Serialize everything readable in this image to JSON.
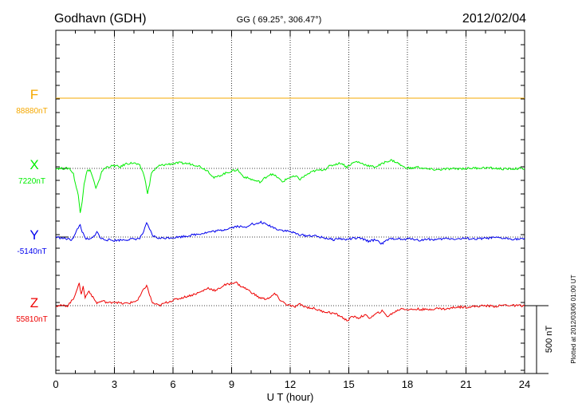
{
  "header": {
    "station": "Godhavn (GDH)",
    "coords": "GG ( 69.25°, 306.47°)",
    "date": "2012/02/04"
  },
  "footer": {
    "plotted": "Plotted at 2012/03/06 01:00 UT"
  },
  "chart_data": {
    "type": "line",
    "xlabel": "U T (hour)",
    "xlim": [
      0,
      24
    ],
    "xticks": [
      "0",
      "3",
      "6",
      "9",
      "12",
      "15",
      "18",
      "21",
      "24"
    ],
    "grid": true,
    "scale_bar": {
      "label": "500 nT",
      "value": 500
    },
    "series": [
      {
        "name": "F",
        "baseline_label": "88880nT",
        "baseline": 88880,
        "color": "#f5a800",
        "points": [
          [
            0,
            0
          ],
          [
            24,
            0
          ]
        ]
      },
      {
        "name": "X",
        "baseline_label": "7220nT",
        "baseline": 7220,
        "color": "#00ee00",
        "points": [
          [
            0,
            0
          ],
          [
            0.7,
            0
          ],
          [
            0.9,
            -40
          ],
          [
            1.0,
            -110
          ],
          [
            1.15,
            -200
          ],
          [
            1.25,
            -320
          ],
          [
            1.35,
            -240
          ],
          [
            1.45,
            -110
          ],
          [
            1.6,
            -20
          ],
          [
            1.75,
            -10
          ],
          [
            1.9,
            -70
          ],
          [
            2.05,
            -150
          ],
          [
            2.2,
            -100
          ],
          [
            2.35,
            -20
          ],
          [
            2.6,
            10
          ],
          [
            3.0,
            20
          ],
          [
            3.3,
            10
          ],
          [
            3.6,
            35
          ],
          [
            4.0,
            40
          ],
          [
            4.3,
            20
          ],
          [
            4.5,
            -40
          ],
          [
            4.6,
            -110
          ],
          [
            4.7,
            -180
          ],
          [
            4.8,
            -120
          ],
          [
            4.9,
            -30
          ],
          [
            5.3,
            20
          ],
          [
            5.7,
            30
          ],
          [
            6.3,
            40
          ],
          [
            6.8,
            35
          ],
          [
            7.3,
            20
          ],
          [
            7.8,
            -20
          ],
          [
            8.1,
            -70
          ],
          [
            8.3,
            -60
          ],
          [
            8.6,
            -40
          ],
          [
            9.0,
            -20
          ],
          [
            9.3,
            -10
          ],
          [
            9.6,
            -60
          ],
          [
            9.9,
            -75
          ],
          [
            10.3,
            -95
          ],
          [
            10.5,
            -100
          ],
          [
            10.7,
            -70
          ],
          [
            11.0,
            -40
          ],
          [
            11.3,
            -60
          ],
          [
            11.6,
            -100
          ],
          [
            11.8,
            -80
          ],
          [
            12.0,
            -65
          ],
          [
            12.3,
            -60
          ],
          [
            12.5,
            -80
          ],
          [
            12.8,
            -50
          ],
          [
            13.2,
            -20
          ],
          [
            13.6,
            -10
          ],
          [
            13.8,
            -5
          ],
          [
            14.0,
            15
          ],
          [
            14.3,
            30
          ],
          [
            14.6,
            40
          ],
          [
            14.9,
            10
          ],
          [
            15.2,
            40
          ],
          [
            15.4,
            50
          ],
          [
            15.7,
            35
          ],
          [
            16.0,
            20
          ],
          [
            16.3,
            10
          ],
          [
            16.6,
            25
          ],
          [
            16.9,
            50
          ],
          [
            17.2,
            60
          ],
          [
            17.5,
            40
          ],
          [
            17.8,
            10
          ],
          [
            18.2,
            0
          ],
          [
            18.5,
            10
          ],
          [
            19.0,
            -5
          ],
          [
            19.5,
            -10
          ],
          [
            20.0,
            -5
          ],
          [
            21.0,
            0
          ],
          [
            22.0,
            5
          ],
          [
            23.0,
            -5
          ],
          [
            24.0,
            0
          ]
        ]
      },
      {
        "name": "Y",
        "baseline_label": "-5140nT",
        "baseline": -5140,
        "color": "#0000ee",
        "points": [
          [
            0,
            0
          ],
          [
            0.8,
            -20
          ],
          [
            1.0,
            20
          ],
          [
            1.1,
            60
          ],
          [
            1.25,
            90
          ],
          [
            1.35,
            40
          ],
          [
            1.5,
            -10
          ],
          [
            1.7,
            -20
          ],
          [
            1.9,
            -5
          ],
          [
            2.1,
            40
          ],
          [
            2.3,
            -10
          ],
          [
            2.6,
            -20
          ],
          [
            3.0,
            -25
          ],
          [
            3.5,
            -20
          ],
          [
            4.0,
            -15
          ],
          [
            4.3,
            -10
          ],
          [
            4.5,
            40
          ],
          [
            4.65,
            100
          ],
          [
            4.8,
            60
          ],
          [
            4.95,
            10
          ],
          [
            5.3,
            -10
          ],
          [
            5.8,
            -5
          ],
          [
            6.3,
            0
          ],
          [
            6.8,
            10
          ],
          [
            7.2,
            20
          ],
          [
            7.6,
            30
          ],
          [
            8.0,
            40
          ],
          [
            8.5,
            50
          ],
          [
            9.0,
            70
          ],
          [
            9.3,
            80
          ],
          [
            9.7,
            70
          ],
          [
            10.0,
            100
          ],
          [
            10.2,
            90
          ],
          [
            10.5,
            110
          ],
          [
            10.8,
            90
          ],
          [
            11.0,
            80
          ],
          [
            11.3,
            60
          ],
          [
            11.6,
            50
          ],
          [
            12.0,
            40
          ],
          [
            12.4,
            20
          ],
          [
            12.8,
            10
          ],
          [
            13.2,
            10
          ],
          [
            13.5,
            0
          ],
          [
            13.9,
            -10
          ],
          [
            14.2,
            -20
          ],
          [
            14.5,
            -10
          ],
          [
            14.8,
            -20
          ],
          [
            15.2,
            -10
          ],
          [
            15.6,
            -10
          ],
          [
            16.0,
            -30
          ],
          [
            16.4,
            -20
          ],
          [
            16.7,
            -50
          ],
          [
            17.0,
            -20
          ],
          [
            17.4,
            -10
          ],
          [
            17.8,
            -20
          ],
          [
            18.2,
            -10
          ],
          [
            18.6,
            -25
          ],
          [
            19.0,
            -15
          ],
          [
            19.5,
            -20
          ],
          [
            20.0,
            -10
          ],
          [
            20.5,
            -15
          ],
          [
            21.0,
            -10
          ],
          [
            21.5,
            -15
          ],
          [
            22.0,
            -10
          ],
          [
            22.5,
            -5
          ],
          [
            23.0,
            -10
          ],
          [
            23.5,
            -15
          ],
          [
            24.0,
            -15
          ]
        ]
      },
      {
        "name": "Z",
        "baseline_label": "55810nT",
        "baseline": 55810,
        "color": "#ee0000",
        "points": [
          [
            0,
            0
          ],
          [
            0.6,
            0
          ],
          [
            0.9,
            50
          ],
          [
            1.05,
            110
          ],
          [
            1.2,
            160
          ],
          [
            1.3,
            90
          ],
          [
            1.4,
            140
          ],
          [
            1.5,
            60
          ],
          [
            1.7,
            110
          ],
          [
            1.9,
            60
          ],
          [
            2.1,
            20
          ],
          [
            2.4,
            35
          ],
          [
            2.7,
            20
          ],
          [
            3.0,
            30
          ],
          [
            3.4,
            15
          ],
          [
            3.8,
            20
          ],
          [
            4.2,
            40
          ],
          [
            4.5,
            120
          ],
          [
            4.65,
            150
          ],
          [
            4.8,
            80
          ],
          [
            4.95,
            20
          ],
          [
            5.3,
            0
          ],
          [
            5.6,
            20
          ],
          [
            6.0,
            40
          ],
          [
            6.5,
            60
          ],
          [
            7.0,
            80
          ],
          [
            7.4,
            100
          ],
          [
            7.8,
            130
          ],
          [
            8.2,
            110
          ],
          [
            8.6,
            150
          ],
          [
            8.9,
            160
          ],
          [
            9.2,
            175
          ],
          [
            9.4,
            150
          ],
          [
            9.8,
            120
          ],
          [
            10.1,
            90
          ],
          [
            10.4,
            60
          ],
          [
            10.7,
            50
          ],
          [
            11.0,
            60
          ],
          [
            11.2,
            90
          ],
          [
            11.5,
            40
          ],
          [
            11.8,
            10
          ],
          [
            12.2,
            -10
          ],
          [
            12.5,
            10
          ],
          [
            12.8,
            -10
          ],
          [
            13.2,
            -20
          ],
          [
            13.6,
            -40
          ],
          [
            14.0,
            -50
          ],
          [
            14.3,
            -60
          ],
          [
            14.6,
            -80
          ],
          [
            14.9,
            -110
          ],
          [
            15.2,
            -80
          ],
          [
            15.5,
            -90
          ],
          [
            15.8,
            -70
          ],
          [
            16.1,
            -90
          ],
          [
            16.4,
            -60
          ],
          [
            16.7,
            -40
          ],
          [
            17.0,
            -80
          ],
          [
            17.3,
            -50
          ],
          [
            17.7,
            -20
          ],
          [
            18.1,
            -30
          ],
          [
            18.5,
            -25
          ],
          [
            19.0,
            -30
          ],
          [
            19.5,
            -20
          ],
          [
            20.0,
            -25
          ],
          [
            20.5,
            -10
          ],
          [
            21.0,
            -10
          ],
          [
            21.5,
            -5
          ],
          [
            22.0,
            0
          ],
          [
            22.5,
            -5
          ],
          [
            23.0,
            5
          ],
          [
            23.5,
            0
          ],
          [
            24.0,
            0
          ]
        ]
      }
    ]
  }
}
